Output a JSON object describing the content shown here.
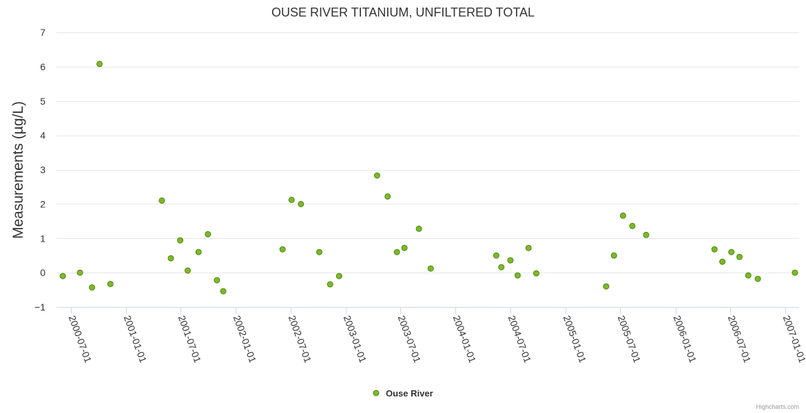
{
  "chart_data": {
    "type": "scatter",
    "title": "OUSE RIVER TITANIUM, UNFILTERED TOTAL",
    "ylabel": "Measurements (µg/L)",
    "xlabel": "",
    "ylim": [
      -1,
      7
    ],
    "yticks": [
      7,
      6,
      5,
      4,
      3,
      2,
      1,
      0,
      -1
    ],
    "ytick_labels": [
      "7",
      "6",
      "5",
      "4",
      "3",
      "2",
      "1",
      "0",
      "−1"
    ],
    "xlim": [
      "2000-05-15",
      "2007-02-15"
    ],
    "xticks": [
      "2000-07-01",
      "2001-01-01",
      "2001-07-01",
      "2002-01-01",
      "2002-07-01",
      "2003-01-01",
      "2003-07-01",
      "2004-01-01",
      "2004-07-01",
      "2005-01-01",
      "2005-07-01",
      "2006-01-01",
      "2006-07-01",
      "2007-01-01"
    ],
    "grid": true,
    "legend": "bottom-center",
    "credits": "Highcharts.com",
    "series": [
      {
        "name": "Ouse River",
        "color": "#7cb82f",
        "stroke": "#4e8a00",
        "points": [
          {
            "x": "2000-06-05",
            "y": -0.1
          },
          {
            "x": "2000-08-01",
            "y": 0.0
          },
          {
            "x": "2000-09-10",
            "y": -0.43
          },
          {
            "x": "2000-10-05",
            "y": 6.08
          },
          {
            "x": "2000-11-10",
            "y": -0.33
          },
          {
            "x": "2001-04-30",
            "y": 2.1
          },
          {
            "x": "2001-05-30",
            "y": 0.42
          },
          {
            "x": "2001-06-30",
            "y": 0.94
          },
          {
            "x": "2001-07-25",
            "y": 0.06
          },
          {
            "x": "2001-08-30",
            "y": 0.6
          },
          {
            "x": "2001-09-30",
            "y": 1.12
          },
          {
            "x": "2001-10-30",
            "y": -0.22
          },
          {
            "x": "2001-11-20",
            "y": -0.54
          },
          {
            "x": "2002-06-05",
            "y": 0.68
          },
          {
            "x": "2002-07-05",
            "y": 2.12
          },
          {
            "x": "2002-08-05",
            "y": 2.0
          },
          {
            "x": "2002-10-05",
            "y": 0.6
          },
          {
            "x": "2002-11-10",
            "y": -0.34
          },
          {
            "x": "2002-12-10",
            "y": -0.1
          },
          {
            "x": "2003-04-15",
            "y": 2.83
          },
          {
            "x": "2003-05-20",
            "y": 2.22
          },
          {
            "x": "2003-06-20",
            "y": 0.6
          },
          {
            "x": "2003-07-15",
            "y": 0.72
          },
          {
            "x": "2003-09-01",
            "y": 1.28
          },
          {
            "x": "2003-10-10",
            "y": 0.12
          },
          {
            "x": "2004-05-15",
            "y": 0.5
          },
          {
            "x": "2004-06-01",
            "y": 0.16
          },
          {
            "x": "2004-07-01",
            "y": 0.36
          },
          {
            "x": "2004-07-25",
            "y": -0.08
          },
          {
            "x": "2004-08-30",
            "y": 0.72
          },
          {
            "x": "2004-09-25",
            "y": -0.02
          },
          {
            "x": "2005-05-15",
            "y": -0.4
          },
          {
            "x": "2005-06-10",
            "y": 0.5
          },
          {
            "x": "2005-07-10",
            "y": 1.66
          },
          {
            "x": "2005-08-10",
            "y": 1.36
          },
          {
            "x": "2005-09-25",
            "y": 1.1
          },
          {
            "x": "2006-05-10",
            "y": 0.68
          },
          {
            "x": "2006-06-05",
            "y": 0.32
          },
          {
            "x": "2006-07-05",
            "y": 0.6
          },
          {
            "x": "2006-08-01",
            "y": 0.46
          },
          {
            "x": "2006-08-30",
            "y": -0.08
          },
          {
            "x": "2006-10-01",
            "y": -0.18
          },
          {
            "x": "2007-02-01",
            "y": 0.0
          }
        ]
      }
    ]
  }
}
